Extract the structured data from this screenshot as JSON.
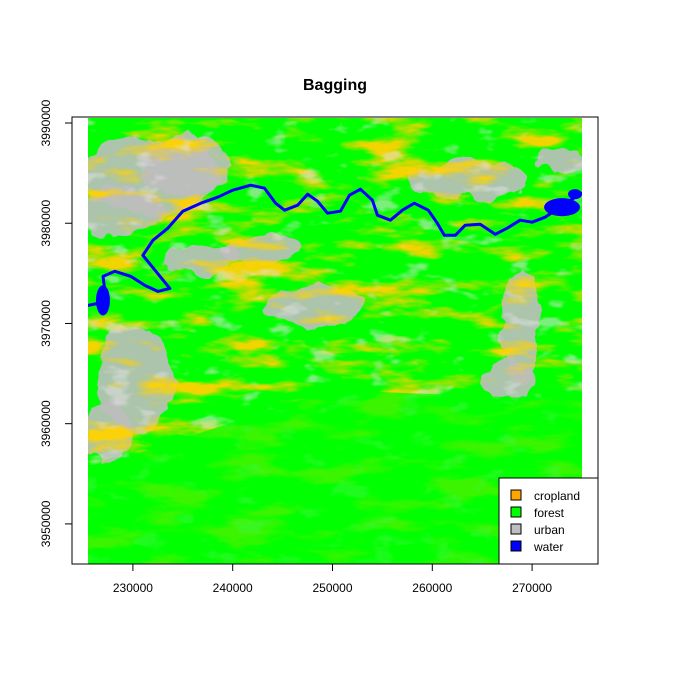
{
  "chart_data": {
    "type": "heatmap",
    "title": "Bagging",
    "xlabel": "",
    "ylabel": "",
    "xlim": [
      225500,
      275000
    ],
    "ylim": [
      3946000,
      3990500
    ],
    "x_ticks": [
      230000,
      240000,
      250000,
      260000,
      270000
    ],
    "x_tick_labels": [
      "230000",
      "240000",
      "250000",
      "260000",
      "270000"
    ],
    "y_ticks": [
      3950000,
      3960000,
      3970000,
      3980000,
      3990000
    ],
    "y_tick_labels": [
      "3950000",
      "3960000",
      "3970000",
      "3980000",
      "3990000"
    ],
    "legend_position": "bottom-right",
    "classes": [
      {
        "name": "cropland",
        "color": "#FFA500"
      },
      {
        "name": "forest",
        "color": "#00FF00"
      },
      {
        "name": "urban",
        "color": "#BEBEBE"
      },
      {
        "name": "water",
        "color": "#0000FF"
      }
    ],
    "river_path": [
      [
        225500,
        3971800
      ],
      [
        226500,
        3972000
      ],
      [
        227200,
        3973200
      ],
      [
        227000,
        3974700
      ],
      [
        228200,
        3975200
      ],
      [
        229800,
        3974700
      ],
      [
        231200,
        3973800
      ],
      [
        232500,
        3973200
      ],
      [
        233700,
        3973500
      ],
      [
        232300,
        3975200
      ],
      [
        231000,
        3976800
      ],
      [
        232000,
        3978300
      ],
      [
        233500,
        3979500
      ],
      [
        235000,
        3981200
      ],
      [
        236800,
        3982000
      ],
      [
        238500,
        3982600
      ],
      [
        240000,
        3983300
      ],
      [
        241800,
        3983800
      ],
      [
        243200,
        3983500
      ],
      [
        244300,
        3982000
      ],
      [
        245200,
        3981300
      ],
      [
        246500,
        3981800
      ],
      [
        247500,
        3982900
      ],
      [
        248500,
        3982200
      ],
      [
        249500,
        3981000
      ],
      [
        250800,
        3981200
      ],
      [
        251700,
        3982800
      ],
      [
        252800,
        3983400
      ],
      [
        254000,
        3982300
      ],
      [
        254500,
        3980800
      ],
      [
        255800,
        3980300
      ],
      [
        257000,
        3981300
      ],
      [
        258200,
        3982000
      ],
      [
        259600,
        3981300
      ],
      [
        260500,
        3980000
      ],
      [
        261200,
        3978800
      ],
      [
        262300,
        3978800
      ],
      [
        263300,
        3979800
      ],
      [
        264800,
        3979900
      ],
      [
        266300,
        3978900
      ],
      [
        267500,
        3979500
      ],
      [
        268800,
        3980300
      ],
      [
        270000,
        3980100
      ],
      [
        271300,
        3980600
      ],
      [
        272500,
        3981400
      ],
      [
        273500,
        3982100
      ],
      [
        275000,
        3983000
      ]
    ],
    "water_bodies": [
      {
        "x": 227000,
        "y": 3972300,
        "rx": 700,
        "ry": 1500
      },
      {
        "x": 273000,
        "y": 3981600,
        "rx": 1800,
        "ry": 900
      },
      {
        "x": 274300,
        "y": 3982900,
        "rx": 700,
        "ry": 500
      }
    ]
  }
}
